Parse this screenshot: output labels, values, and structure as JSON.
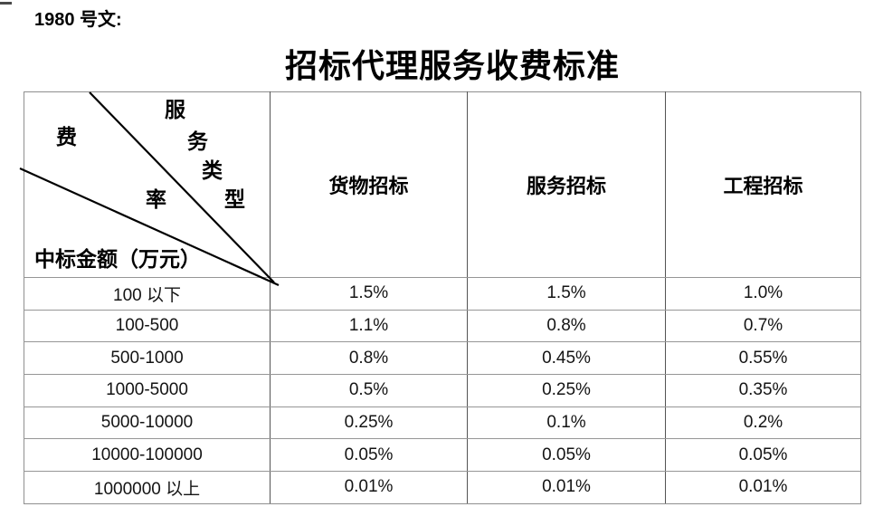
{
  "header": {
    "doc_number": "1980 号文:",
    "title": "招标代理服务收费标准"
  },
  "table": {
    "corner": {
      "service_type_chars": [
        "服",
        "务",
        "类",
        "型"
      ],
      "rate_chars": [
        "费",
        "率"
      ],
      "row_axis_label": "中标金额（万元）"
    },
    "columns": [
      "货物招标",
      "服务招标",
      "工程招标"
    ],
    "rows": [
      {
        "range": "100 以下",
        "values": [
          "1.5%",
          "1.5%",
          "1.0%"
        ]
      },
      {
        "range": "100-500",
        "values": [
          "1.1%",
          "0.8%",
          "0.7%"
        ]
      },
      {
        "range": "500-1000",
        "values": [
          "0.8%",
          "0.45%",
          "0.55%"
        ]
      },
      {
        "range": "1000-5000",
        "values": [
          "0.5%",
          "0.25%",
          "0.35%"
        ]
      },
      {
        "range": "5000-10000",
        "values": [
          "0.25%",
          "0.1%",
          "0.2%"
        ]
      },
      {
        "range": "10000-100000",
        "values": [
          "0.05%",
          "0.05%",
          "0.05%"
        ]
      },
      {
        "range": "1000000 以上",
        "values": [
          "0.01%",
          "0.01%",
          "0.01%"
        ]
      }
    ]
  },
  "colors": {
    "text": "#000000",
    "border_horizontal": "#969696",
    "border_vertical": "#545454",
    "diagonal_line": "#000000"
  }
}
